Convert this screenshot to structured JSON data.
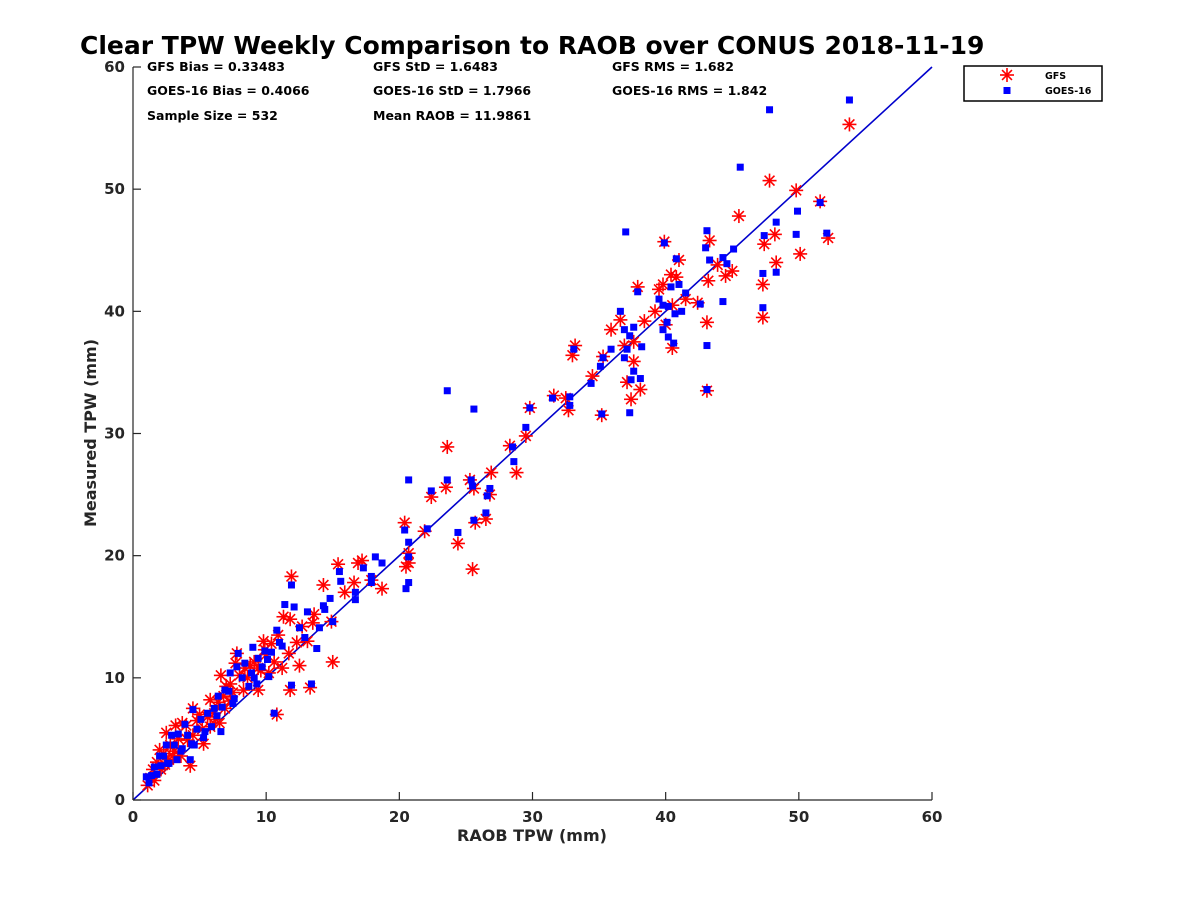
{
  "chart_data": {
    "type": "scatter",
    "title": "Clear TPW Weekly Comparison to RAOB over CONUS 2018-11-19",
    "xlabel": "RAOB TPW (mm)",
    "ylabel": "Measured TPW (mm)",
    "xlim": [
      0,
      60
    ],
    "ylim": [
      0,
      60
    ],
    "xticks": [
      0,
      10,
      20,
      30,
      40,
      50,
      60
    ],
    "yticks": [
      0,
      10,
      20,
      30,
      40,
      50,
      60
    ],
    "grid": false,
    "legend_position": "top-right outside",
    "reference_line": {
      "x": [
        0,
        60
      ],
      "y": [
        0,
        60
      ],
      "color": "#0000cc"
    },
    "stats": [
      [
        "GFS Bias = 0.33483",
        "GFS StD = 1.6483",
        "GFS RMS = 1.682"
      ],
      [
        "GOES-16 Bias = 0.4066",
        "GOES-16 StD = 1.7966",
        "GOES-16 RMS = 1.842"
      ],
      [
        "Sample Size = 532",
        "Mean RAOB = 11.9861",
        ""
      ]
    ],
    "series": [
      {
        "name": "GFS",
        "marker": "asterisk",
        "color": "#ff0000",
        "points": [
          [
            53.8,
            55.3
          ],
          [
            47.8,
            50.7
          ],
          [
            49.8,
            49.9
          ],
          [
            51.6,
            49.0
          ],
          [
            52.2,
            46.0
          ],
          [
            50.1,
            44.7
          ],
          [
            48.3,
            44.0
          ],
          [
            48.2,
            46.3
          ],
          [
            47.4,
            45.5
          ],
          [
            47.3,
            42.2
          ],
          [
            47.3,
            39.5
          ],
          [
            45.5,
            47.8
          ],
          [
            45.0,
            43.3
          ],
          [
            44.5,
            42.9
          ],
          [
            43.9,
            43.8
          ],
          [
            43.3,
            45.8
          ],
          [
            43.2,
            42.5
          ],
          [
            43.1,
            39.1
          ],
          [
            43.1,
            33.5
          ],
          [
            42.4,
            40.7
          ],
          [
            41.5,
            41.0
          ],
          [
            41.0,
            44.2
          ],
          [
            40.8,
            42.8
          ],
          [
            40.4,
            43.0
          ],
          [
            40.5,
            40.5
          ],
          [
            40.5,
            37.0
          ],
          [
            40.0,
            38.9
          ],
          [
            39.9,
            45.7
          ],
          [
            39.8,
            42.2
          ],
          [
            39.5,
            41.8
          ],
          [
            39.2,
            40.0
          ],
          [
            38.4,
            39.2
          ],
          [
            38.1,
            33.6
          ],
          [
            37.9,
            42.0
          ],
          [
            37.6,
            37.5
          ],
          [
            37.6,
            35.9
          ],
          [
            37.4,
            32.8
          ],
          [
            37.1,
            34.2
          ],
          [
            36.9,
            37.2
          ],
          [
            36.6,
            39.3
          ],
          [
            35.9,
            38.5
          ],
          [
            35.3,
            36.3
          ],
          [
            35.2,
            31.5
          ],
          [
            34.5,
            34.7
          ],
          [
            33.2,
            37.2
          ],
          [
            33.0,
            36.4
          ],
          [
            32.7,
            31.9
          ],
          [
            32.5,
            32.9
          ],
          [
            31.6,
            33.1
          ],
          [
            29.8,
            32.1
          ],
          [
            29.5,
            29.8
          ],
          [
            28.8,
            26.8
          ],
          [
            28.3,
            29.0
          ],
          [
            26.9,
            26.8
          ],
          [
            26.8,
            25.0
          ],
          [
            26.5,
            23.0
          ],
          [
            25.6,
            25.5
          ],
          [
            25.5,
            18.9
          ],
          [
            25.7,
            22.7
          ],
          [
            25.3,
            26.2
          ],
          [
            24.4,
            21.0
          ],
          [
            23.6,
            28.9
          ],
          [
            23.5,
            25.6
          ],
          [
            22.4,
            24.8
          ],
          [
            21.9,
            22.0
          ],
          [
            20.7,
            20.2
          ],
          [
            20.7,
            19.4
          ],
          [
            20.4,
            22.7
          ],
          [
            20.5,
            19.1
          ],
          [
            18.7,
            17.3
          ],
          [
            17.9,
            18.0
          ],
          [
            17.2,
            19.6
          ],
          [
            16.9,
            19.4
          ],
          [
            16.6,
            17.8
          ],
          [
            15.4,
            19.3
          ],
          [
            15.9,
            17.0
          ],
          [
            15.0,
            11.3
          ],
          [
            14.9,
            14.6
          ],
          [
            14.3,
            17.6
          ],
          [
            13.6,
            15.2
          ],
          [
            13.5,
            14.5
          ],
          [
            13.3,
            9.2
          ],
          [
            13.1,
            13.0
          ],
          [
            12.7,
            14.2
          ],
          [
            12.5,
            11.0
          ],
          [
            11.9,
            18.3
          ],
          [
            11.8,
            14.8
          ],
          [
            11.8,
            9.0
          ],
          [
            11.7,
            12.0
          ],
          [
            11.3,
            15.0
          ],
          [
            11.2,
            10.8
          ],
          [
            10.9,
            13.5
          ],
          [
            10.4,
            12.8
          ],
          [
            10.2,
            10.4
          ],
          [
            10.0,
            11.9
          ],
          [
            9.9,
            12.3
          ],
          [
            9.8,
            13.0
          ],
          [
            9.4,
            10.8
          ],
          [
            9.4,
            9.0
          ],
          [
            9.1,
            11.3
          ],
          [
            8.8,
            11.0
          ],
          [
            8.4,
            10.8
          ],
          [
            8.3,
            9.0
          ],
          [
            8.0,
            10.2
          ],
          [
            7.8,
            12.0
          ],
          [
            7.7,
            11.2
          ],
          [
            7.5,
            8.8
          ],
          [
            7.3,
            9.5
          ],
          [
            7.0,
            9.3
          ],
          [
            6.9,
            7.5
          ],
          [
            6.8,
            8.5
          ],
          [
            6.6,
            10.2
          ],
          [
            6.5,
            6.3
          ],
          [
            6.4,
            8.0
          ],
          [
            6.1,
            7.1
          ],
          [
            5.8,
            8.2
          ],
          [
            5.8,
            6.0
          ],
          [
            5.6,
            6.8
          ],
          [
            5.3,
            4.6
          ],
          [
            5.0,
            7.0
          ],
          [
            4.8,
            6.5
          ],
          [
            4.5,
            7.5
          ],
          [
            4.5,
            5.3
          ],
          [
            4.3,
            2.8
          ],
          [
            4.0,
            6.1
          ],
          [
            3.7,
            6.3
          ],
          [
            3.6,
            3.6
          ],
          [
            3.4,
            5.0
          ],
          [
            3.2,
            6.1
          ],
          [
            3.1,
            4.0
          ],
          [
            2.8,
            4.5
          ],
          [
            2.7,
            3.3
          ],
          [
            2.5,
            5.5
          ],
          [
            2.3,
            3.8
          ],
          [
            2.1,
            2.5
          ],
          [
            2.0,
            4.1
          ],
          [
            1.8,
            3.1
          ],
          [
            1.6,
            1.6
          ],
          [
            1.5,
            2.5
          ],
          [
            1.3,
            1.8
          ],
          [
            1.1,
            1.2
          ],
          [
            9.6,
            10.6
          ],
          [
            10.6,
            11.3
          ],
          [
            8.6,
            10.0
          ],
          [
            7.3,
            8.1
          ],
          [
            6.2,
            6.6
          ],
          [
            5.2,
            5.8
          ],
          [
            4.1,
            4.9
          ],
          [
            3.0,
            3.6
          ],
          [
            2.4,
            2.9
          ],
          [
            12.3,
            12.9
          ],
          [
            10.8,
            7.0
          ]
        ]
      },
      {
        "name": "GOES-16",
        "marker": "square",
        "color": "#0000ff",
        "points": [
          [
            53.8,
            57.3
          ],
          [
            47.8,
            56.5
          ],
          [
            45.6,
            51.8
          ],
          [
            51.6,
            48.9
          ],
          [
            49.9,
            48.2
          ],
          [
            48.3,
            47.3
          ],
          [
            52.1,
            46.4
          ],
          [
            49.8,
            46.3
          ],
          [
            47.4,
            46.2
          ],
          [
            43.1,
            46.6
          ],
          [
            37.0,
            46.5
          ],
          [
            45.1,
            45.1
          ],
          [
            43.3,
            44.2
          ],
          [
            44.3,
            44.4
          ],
          [
            44.6,
            43.9
          ],
          [
            43.0,
            45.2
          ],
          [
            40.8,
            44.3
          ],
          [
            39.9,
            45.6
          ],
          [
            48.3,
            43.2
          ],
          [
            47.3,
            43.1
          ],
          [
            41.0,
            42.2
          ],
          [
            41.5,
            41.5
          ],
          [
            40.4,
            42.0
          ],
          [
            39.5,
            41.0
          ],
          [
            39.8,
            40.5
          ],
          [
            40.2,
            40.4
          ],
          [
            40.7,
            39.8
          ],
          [
            41.2,
            40.0
          ],
          [
            40.1,
            39.1
          ],
          [
            39.8,
            38.5
          ],
          [
            40.6,
            37.4
          ],
          [
            40.2,
            37.9
          ],
          [
            42.6,
            40.6
          ],
          [
            44.3,
            40.8
          ],
          [
            43.1,
            37.2
          ],
          [
            47.3,
            40.3
          ],
          [
            43.1,
            33.6
          ],
          [
            38.1,
            34.5
          ],
          [
            37.9,
            41.6
          ],
          [
            37.6,
            38.7
          ],
          [
            36.6,
            40.0
          ],
          [
            36.9,
            38.5
          ],
          [
            37.3,
            38.0
          ],
          [
            37.1,
            36.9
          ],
          [
            38.2,
            37.1
          ],
          [
            37.6,
            35.1
          ],
          [
            37.4,
            34.4
          ],
          [
            37.3,
            31.7
          ],
          [
            36.9,
            36.2
          ],
          [
            35.9,
            36.9
          ],
          [
            35.3,
            36.2
          ],
          [
            35.1,
            35.5
          ],
          [
            34.4,
            34.1
          ],
          [
            33.1,
            36.9
          ],
          [
            32.8,
            33.0
          ],
          [
            32.8,
            32.3
          ],
          [
            31.5,
            32.9
          ],
          [
            35.2,
            31.6
          ],
          [
            29.8,
            32.1
          ],
          [
            29.5,
            30.5
          ],
          [
            28.6,
            27.7
          ],
          [
            28.5,
            28.9
          ],
          [
            26.8,
            25.5
          ],
          [
            26.6,
            24.9
          ],
          [
            26.5,
            23.5
          ],
          [
            25.6,
            32.0
          ],
          [
            25.5,
            25.7
          ],
          [
            25.4,
            26.2
          ],
          [
            25.6,
            22.9
          ],
          [
            24.4,
            21.9
          ],
          [
            23.6,
            33.5
          ],
          [
            23.6,
            26.2
          ],
          [
            22.4,
            25.3
          ],
          [
            22.1,
            22.2
          ],
          [
            20.7,
            26.2
          ],
          [
            20.7,
            21.1
          ],
          [
            20.7,
            19.9
          ],
          [
            20.7,
            17.8
          ],
          [
            20.5,
            17.3
          ],
          [
            20.4,
            22.1
          ],
          [
            18.7,
            19.4
          ],
          [
            17.9,
            18.3
          ],
          [
            17.9,
            17.8
          ],
          [
            18.2,
            19.9
          ],
          [
            17.3,
            19.0
          ],
          [
            16.7,
            16.4
          ],
          [
            16.7,
            17.0
          ],
          [
            15.6,
            17.9
          ],
          [
            15.5,
            18.7
          ],
          [
            15.0,
            14.6
          ],
          [
            14.8,
            16.5
          ],
          [
            14.4,
            15.6
          ],
          [
            14.0,
            14.1
          ],
          [
            13.8,
            12.4
          ],
          [
            13.4,
            9.5
          ],
          [
            13.1,
            15.4
          ],
          [
            12.5,
            14.1
          ],
          [
            12.1,
            15.8
          ],
          [
            11.9,
            17.6
          ],
          [
            11.9,
            9.4
          ],
          [
            11.4,
            16.0
          ],
          [
            11.2,
            12.6
          ],
          [
            10.8,
            13.9
          ],
          [
            10.6,
            7.1
          ],
          [
            10.4,
            12.1
          ],
          [
            10.2,
            10.1
          ],
          [
            9.9,
            12.2
          ],
          [
            9.7,
            10.9
          ],
          [
            9.4,
            11.6
          ],
          [
            9.1,
            10.0
          ],
          [
            9.0,
            12.5
          ],
          [
            8.7,
            9.3
          ],
          [
            8.4,
            11.2
          ],
          [
            8.2,
            10.0
          ],
          [
            7.9,
            12.0
          ],
          [
            7.8,
            10.9
          ],
          [
            7.6,
            8.3
          ],
          [
            7.3,
            10.4
          ],
          [
            7.2,
            8.9
          ],
          [
            6.9,
            9.0
          ],
          [
            6.7,
            7.6
          ],
          [
            6.6,
            5.6
          ],
          [
            6.4,
            8.5
          ],
          [
            6.1,
            7.5
          ],
          [
            5.9,
            6.0
          ],
          [
            5.6,
            7.1
          ],
          [
            5.3,
            5.1
          ],
          [
            5.1,
            6.6
          ],
          [
            4.8,
            5.8
          ],
          [
            4.6,
            4.5
          ],
          [
            4.5,
            7.4
          ],
          [
            4.3,
            3.3
          ],
          [
            4.1,
            5.3
          ],
          [
            3.9,
            6.2
          ],
          [
            3.6,
            4.0
          ],
          [
            3.4,
            5.4
          ],
          [
            3.3,
            3.3
          ],
          [
            3.1,
            4.5
          ],
          [
            2.9,
            5.3
          ],
          [
            2.7,
            3.0
          ],
          [
            2.5,
            4.5
          ],
          [
            2.3,
            3.6
          ],
          [
            2.1,
            2.8
          ],
          [
            2.0,
            3.6
          ],
          [
            1.8,
            2.1
          ],
          [
            1.6,
            2.7
          ],
          [
            1.4,
            2.0
          ],
          [
            1.2,
            1.4
          ],
          [
            1.0,
            1.9
          ],
          [
            9.3,
            9.5
          ],
          [
            8.9,
            10.4
          ],
          [
            10.1,
            11.5
          ],
          [
            11.0,
            12.9
          ],
          [
            7.5,
            7.9
          ],
          [
            6.3,
            6.9
          ],
          [
            5.4,
            5.6
          ],
          [
            4.4,
            4.6
          ],
          [
            3.7,
            4.2
          ],
          [
            2.6,
            3.0
          ],
          [
            12.9,
            13.3
          ],
          [
            14.3,
            15.9
          ]
        ]
      }
    ]
  }
}
